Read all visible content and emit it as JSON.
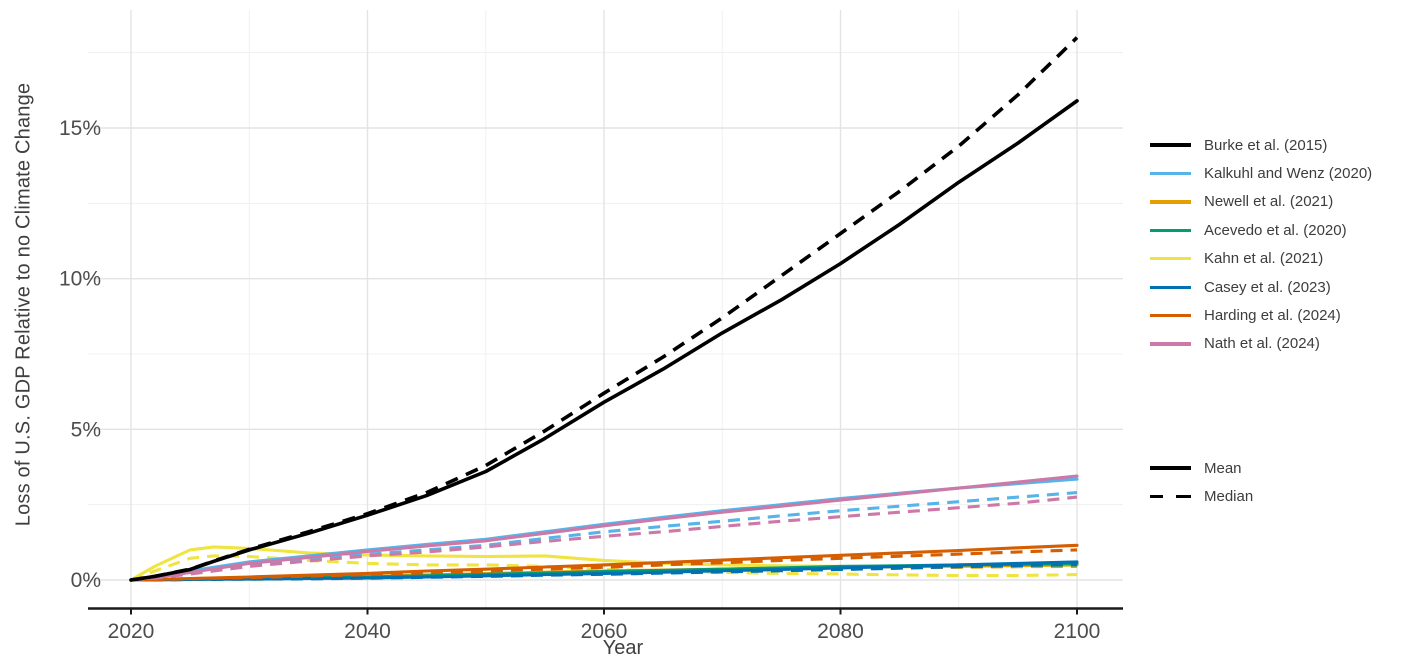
{
  "chart_data": {
    "type": "line",
    "title": "",
    "xlabel": "Year",
    "ylabel": "Loss of U.S. GDP Relative to no Climate Change",
    "grid": true,
    "legend_position": "right",
    "x_ticks": [
      {
        "value": 2020,
        "label": "2020"
      },
      {
        "value": 2040,
        "label": "2040"
      },
      {
        "value": 2060,
        "label": "2060"
      },
      {
        "value": 2080,
        "label": "2080"
      },
      {
        "value": 2100,
        "label": "2100"
      }
    ],
    "x_gridlines": [
      2020,
      2030,
      2040,
      2050,
      2060,
      2070,
      2080,
      2090,
      2100
    ],
    "y_ticks": [
      {
        "value": 0,
        "label": "0%"
      },
      {
        "value": 5,
        "label": "5%"
      },
      {
        "value": 10,
        "label": "10%"
      },
      {
        "value": 15,
        "label": "15%"
      }
    ],
    "y_gridlines": [
      0,
      2.5,
      5,
      7.5,
      10,
      12.5,
      15,
      17.5
    ],
    "xlim": [
      2016,
      2104
    ],
    "ylim": [
      -0.95,
      18.9
    ],
    "years": [
      2020,
      2022,
      2025,
      2027,
      2030,
      2035,
      2040,
      2045,
      2050,
      2055,
      2060,
      2065,
      2070,
      2075,
      2080,
      2085,
      2090,
      2095,
      2100
    ],
    "unit": "percent_gdp_loss",
    "series": [
      {
        "name": "Burke et al. (2015)",
        "color": "#000000",
        "mean": [
          0,
          0.12,
          0.35,
          0.62,
          1.0,
          1.55,
          2.15,
          2.8,
          3.6,
          4.7,
          5.9,
          7.0,
          8.2,
          9.3,
          10.5,
          11.8,
          13.2,
          14.5,
          15.9
        ],
        "median": [
          0,
          0.12,
          0.36,
          0.63,
          1.02,
          1.6,
          2.2,
          2.9,
          3.8,
          4.95,
          6.2,
          7.4,
          8.7,
          10.1,
          11.5,
          12.9,
          14.4,
          16.1,
          18.0
        ]
      },
      {
        "name": "Kalkuhl and Wenz (2020)",
        "color": "#56B4E9",
        "mean": [
          0,
          0.1,
          0.3,
          0.42,
          0.6,
          0.8,
          1.0,
          1.18,
          1.35,
          1.6,
          1.85,
          2.08,
          2.3,
          2.5,
          2.7,
          2.88,
          3.05,
          3.2,
          3.35
        ],
        "median": [
          0,
          0.08,
          0.25,
          0.35,
          0.5,
          0.68,
          0.85,
          1.0,
          1.15,
          1.38,
          1.6,
          1.78,
          1.95,
          2.13,
          2.3,
          2.45,
          2.6,
          2.75,
          2.9
        ]
      },
      {
        "name": "Newell et al. (2021)",
        "color": "#E69F00",
        "mean": [
          0,
          0.01,
          0.03,
          0.045,
          0.06,
          0.09,
          0.12,
          0.17,
          0.21,
          0.26,
          0.3,
          0.33,
          0.36,
          0.39,
          0.42,
          0.44,
          0.46,
          0.48,
          0.5
        ],
        "median": [
          0,
          0.01,
          0.02,
          0.04,
          0.05,
          0.08,
          0.1,
          0.14,
          0.18,
          0.22,
          0.26,
          0.29,
          0.32,
          0.35,
          0.38,
          0.4,
          0.42,
          0.44,
          0.45
        ]
      },
      {
        "name": "Acevedo et al. (2020)",
        "color": "#009E73",
        "mean": [
          0,
          0.01,
          0.02,
          0.035,
          0.05,
          0.08,
          0.1,
          0.14,
          0.19,
          0.23,
          0.28,
          0.32,
          0.36,
          0.4,
          0.45,
          0.47,
          0.5,
          0.52,
          0.55
        ],
        "median": [
          0,
          0.008,
          0.02,
          0.03,
          0.04,
          0.07,
          0.09,
          0.13,
          0.17,
          0.21,
          0.25,
          0.29,
          0.33,
          0.37,
          0.4,
          0.43,
          0.45,
          0.48,
          0.5
        ]
      },
      {
        "name": "Kahn et al. (2021)",
        "color": "#F0E442",
        "mean": [
          0,
          0.45,
          1.0,
          1.1,
          1.05,
          0.9,
          0.83,
          0.8,
          0.78,
          0.8,
          0.65,
          0.55,
          0.5,
          0.47,
          0.45,
          0.44,
          0.45,
          0.47,
          0.5
        ],
        "median": [
          0,
          0.3,
          0.72,
          0.8,
          0.78,
          0.65,
          0.55,
          0.5,
          0.5,
          0.45,
          0.35,
          0.3,
          0.25,
          0.22,
          0.2,
          0.17,
          0.15,
          0.15,
          0.18
        ]
      },
      {
        "name": "Casey et al. (2023)",
        "color": "#0072B2",
        "mean": [
          0,
          0.008,
          0.02,
          0.025,
          0.03,
          0.05,
          0.07,
          0.1,
          0.14,
          0.18,
          0.22,
          0.26,
          0.31,
          0.35,
          0.4,
          0.45,
          0.5,
          0.55,
          0.6
        ],
        "median": [
          0,
          0.005,
          0.015,
          0.02,
          0.03,
          0.04,
          0.06,
          0.09,
          0.12,
          0.16,
          0.19,
          0.23,
          0.27,
          0.31,
          0.35,
          0.39,
          0.44,
          0.48,
          0.52
        ]
      },
      {
        "name": "Harding et al. (2024)",
        "color": "#D55E00",
        "mean": [
          0,
          0.02,
          0.05,
          0.07,
          0.1,
          0.16,
          0.22,
          0.3,
          0.36,
          0.43,
          0.5,
          0.58,
          0.66,
          0.74,
          0.82,
          0.9,
          0.98,
          1.07,
          1.15
        ],
        "median": [
          0,
          0.015,
          0.04,
          0.06,
          0.08,
          0.13,
          0.18,
          0.24,
          0.3,
          0.36,
          0.42,
          0.5,
          0.57,
          0.65,
          0.72,
          0.79,
          0.86,
          0.93,
          1.0
        ]
      },
      {
        "name": "Nath et al. (2024)",
        "color": "#CC79A7",
        "mean": [
          0,
          0.08,
          0.25,
          0.37,
          0.55,
          0.75,
          0.95,
          1.13,
          1.3,
          1.55,
          1.8,
          2.03,
          2.25,
          2.45,
          2.65,
          2.85,
          3.05,
          3.25,
          3.45
        ],
        "median": [
          0,
          0.06,
          0.2,
          0.3,
          0.45,
          0.63,
          0.8,
          0.93,
          1.1,
          1.28,
          1.45,
          1.6,
          1.78,
          1.95,
          2.1,
          2.25,
          2.4,
          2.55,
          2.75
        ]
      }
    ],
    "line_style_legend": [
      {
        "label": "Mean",
        "style": "solid"
      },
      {
        "label": "Median",
        "style": "dashed"
      }
    ],
    "colors": {
      "axis_line": "#1a1a1a",
      "tick_text": "#4d4d4d",
      "title_text": "#404040",
      "grid_major": "#e3e3e3",
      "grid_minor": "#f0f0f0",
      "background": "#ffffff"
    }
  }
}
